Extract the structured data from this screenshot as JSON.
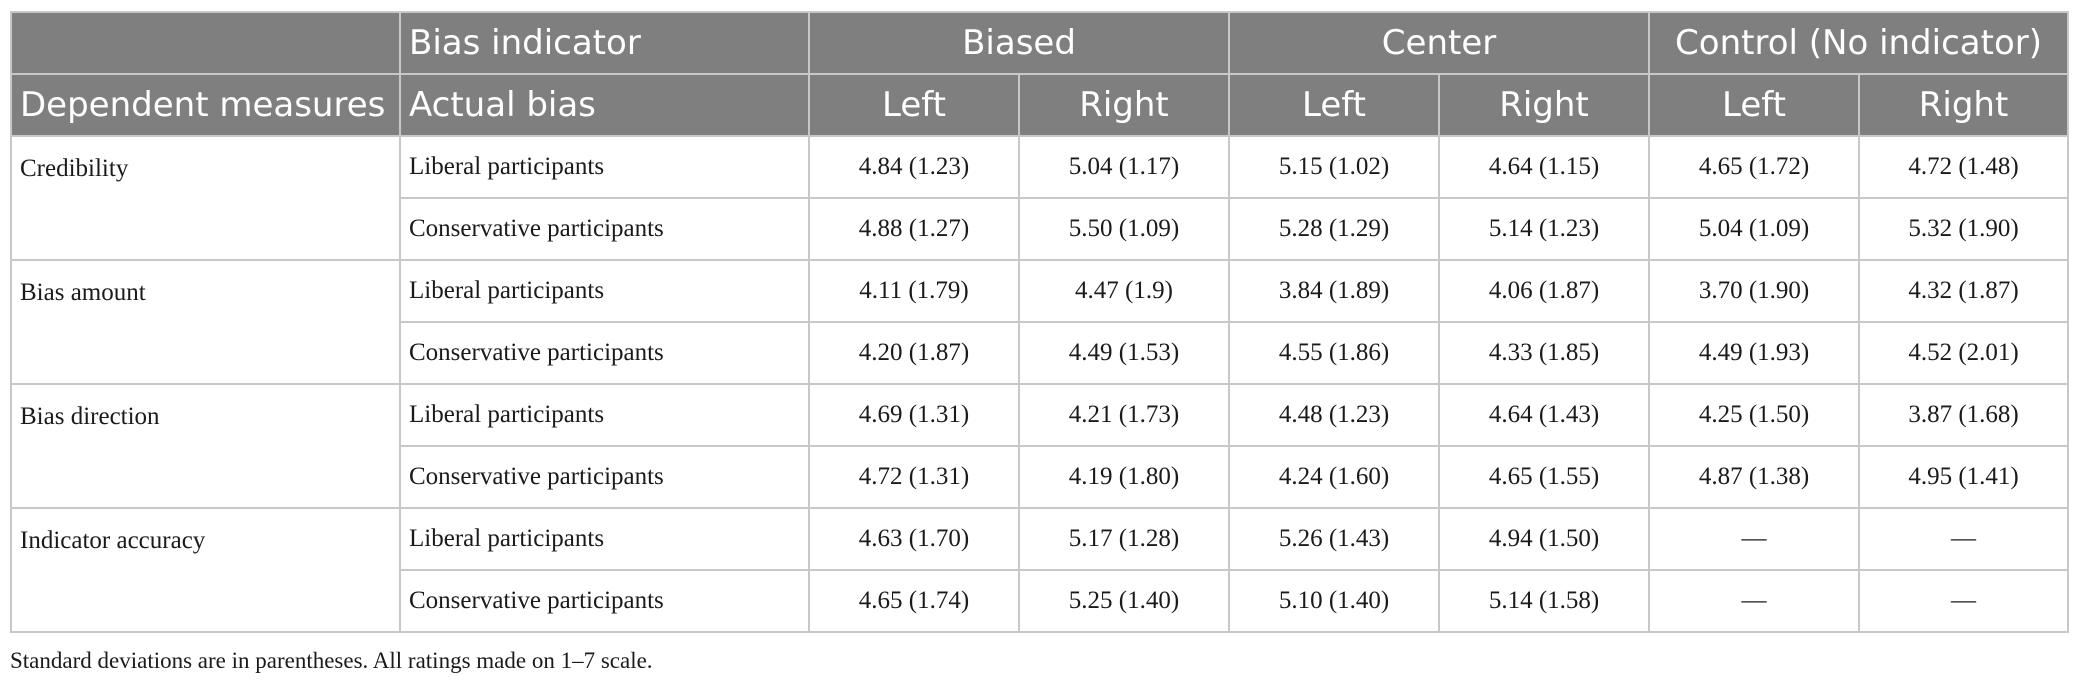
{
  "header": {
    "row1": {
      "first": "",
      "indicator_label": "Bias indicator",
      "groups": [
        "Biased",
        "Center",
        "Control (No indicator)"
      ]
    },
    "row2": {
      "measures_label": "Dependent measures",
      "actual_bias_label": "Actual bias",
      "subcols": [
        "Left",
        "Right",
        "Left",
        "Right",
        "Left",
        "Right"
      ]
    }
  },
  "sections": [
    {
      "measure": "Credibility",
      "rows": [
        {
          "group": "Liberal participants",
          "values": [
            "4.84 (1.23)",
            "5.04 (1.17)",
            "5.15 (1.02)",
            "4.64 (1.15)",
            "4.65 (1.72)",
            "4.72 (1.48)"
          ]
        },
        {
          "group": "Conservative participants",
          "values": [
            "4.88 (1.27)",
            "5.50 (1.09)",
            "5.28 (1.29)",
            "5.14 (1.23)",
            "5.04 (1.09)",
            "5.32 (1.90)"
          ]
        }
      ]
    },
    {
      "measure": "Bias amount",
      "rows": [
        {
          "group": "Liberal participants",
          "values": [
            "4.11 (1.79)",
            "4.47 (1.9)",
            "3.84 (1.89)",
            "4.06 (1.87)",
            "3.70 (1.90)",
            "4.32 (1.87)"
          ]
        },
        {
          "group": "Conservative participants",
          "values": [
            "4.20 (1.87)",
            "4.49 (1.53)",
            "4.55 (1.86)",
            "4.33 (1.85)",
            "4.49 (1.93)",
            "4.52 (2.01)"
          ]
        }
      ]
    },
    {
      "measure": "Bias direction",
      "rows": [
        {
          "group": "Liberal participants",
          "values": [
            "4.69 (1.31)",
            "4.21 (1.73)",
            "4.48 (1.23)",
            "4.64 (1.43)",
            "4.25 (1.50)",
            "3.87 (1.68)"
          ]
        },
        {
          "group": "Conservative participants",
          "values": [
            "4.72 (1.31)",
            "4.19 (1.80)",
            "4.24 (1.60)",
            "4.65 (1.55)",
            "4.87 (1.38)",
            "4.95 (1.41)"
          ]
        }
      ]
    },
    {
      "measure": "Indicator accuracy",
      "rows": [
        {
          "group": "Liberal participants",
          "values": [
            "4.63 (1.70)",
            "5.17 (1.28)",
            "5.26 (1.43)",
            "4.94 (1.50)",
            "—",
            "—"
          ]
        },
        {
          "group": "Conservative participants",
          "values": [
            "4.65 (1.74)",
            "5.25 (1.40)",
            "5.10 (1.40)",
            "5.14 (1.58)",
            "—",
            "—"
          ]
        }
      ]
    }
  ],
  "footnote": "Standard deviations are in parentheses. All ratings made on 1–7 scale."
}
